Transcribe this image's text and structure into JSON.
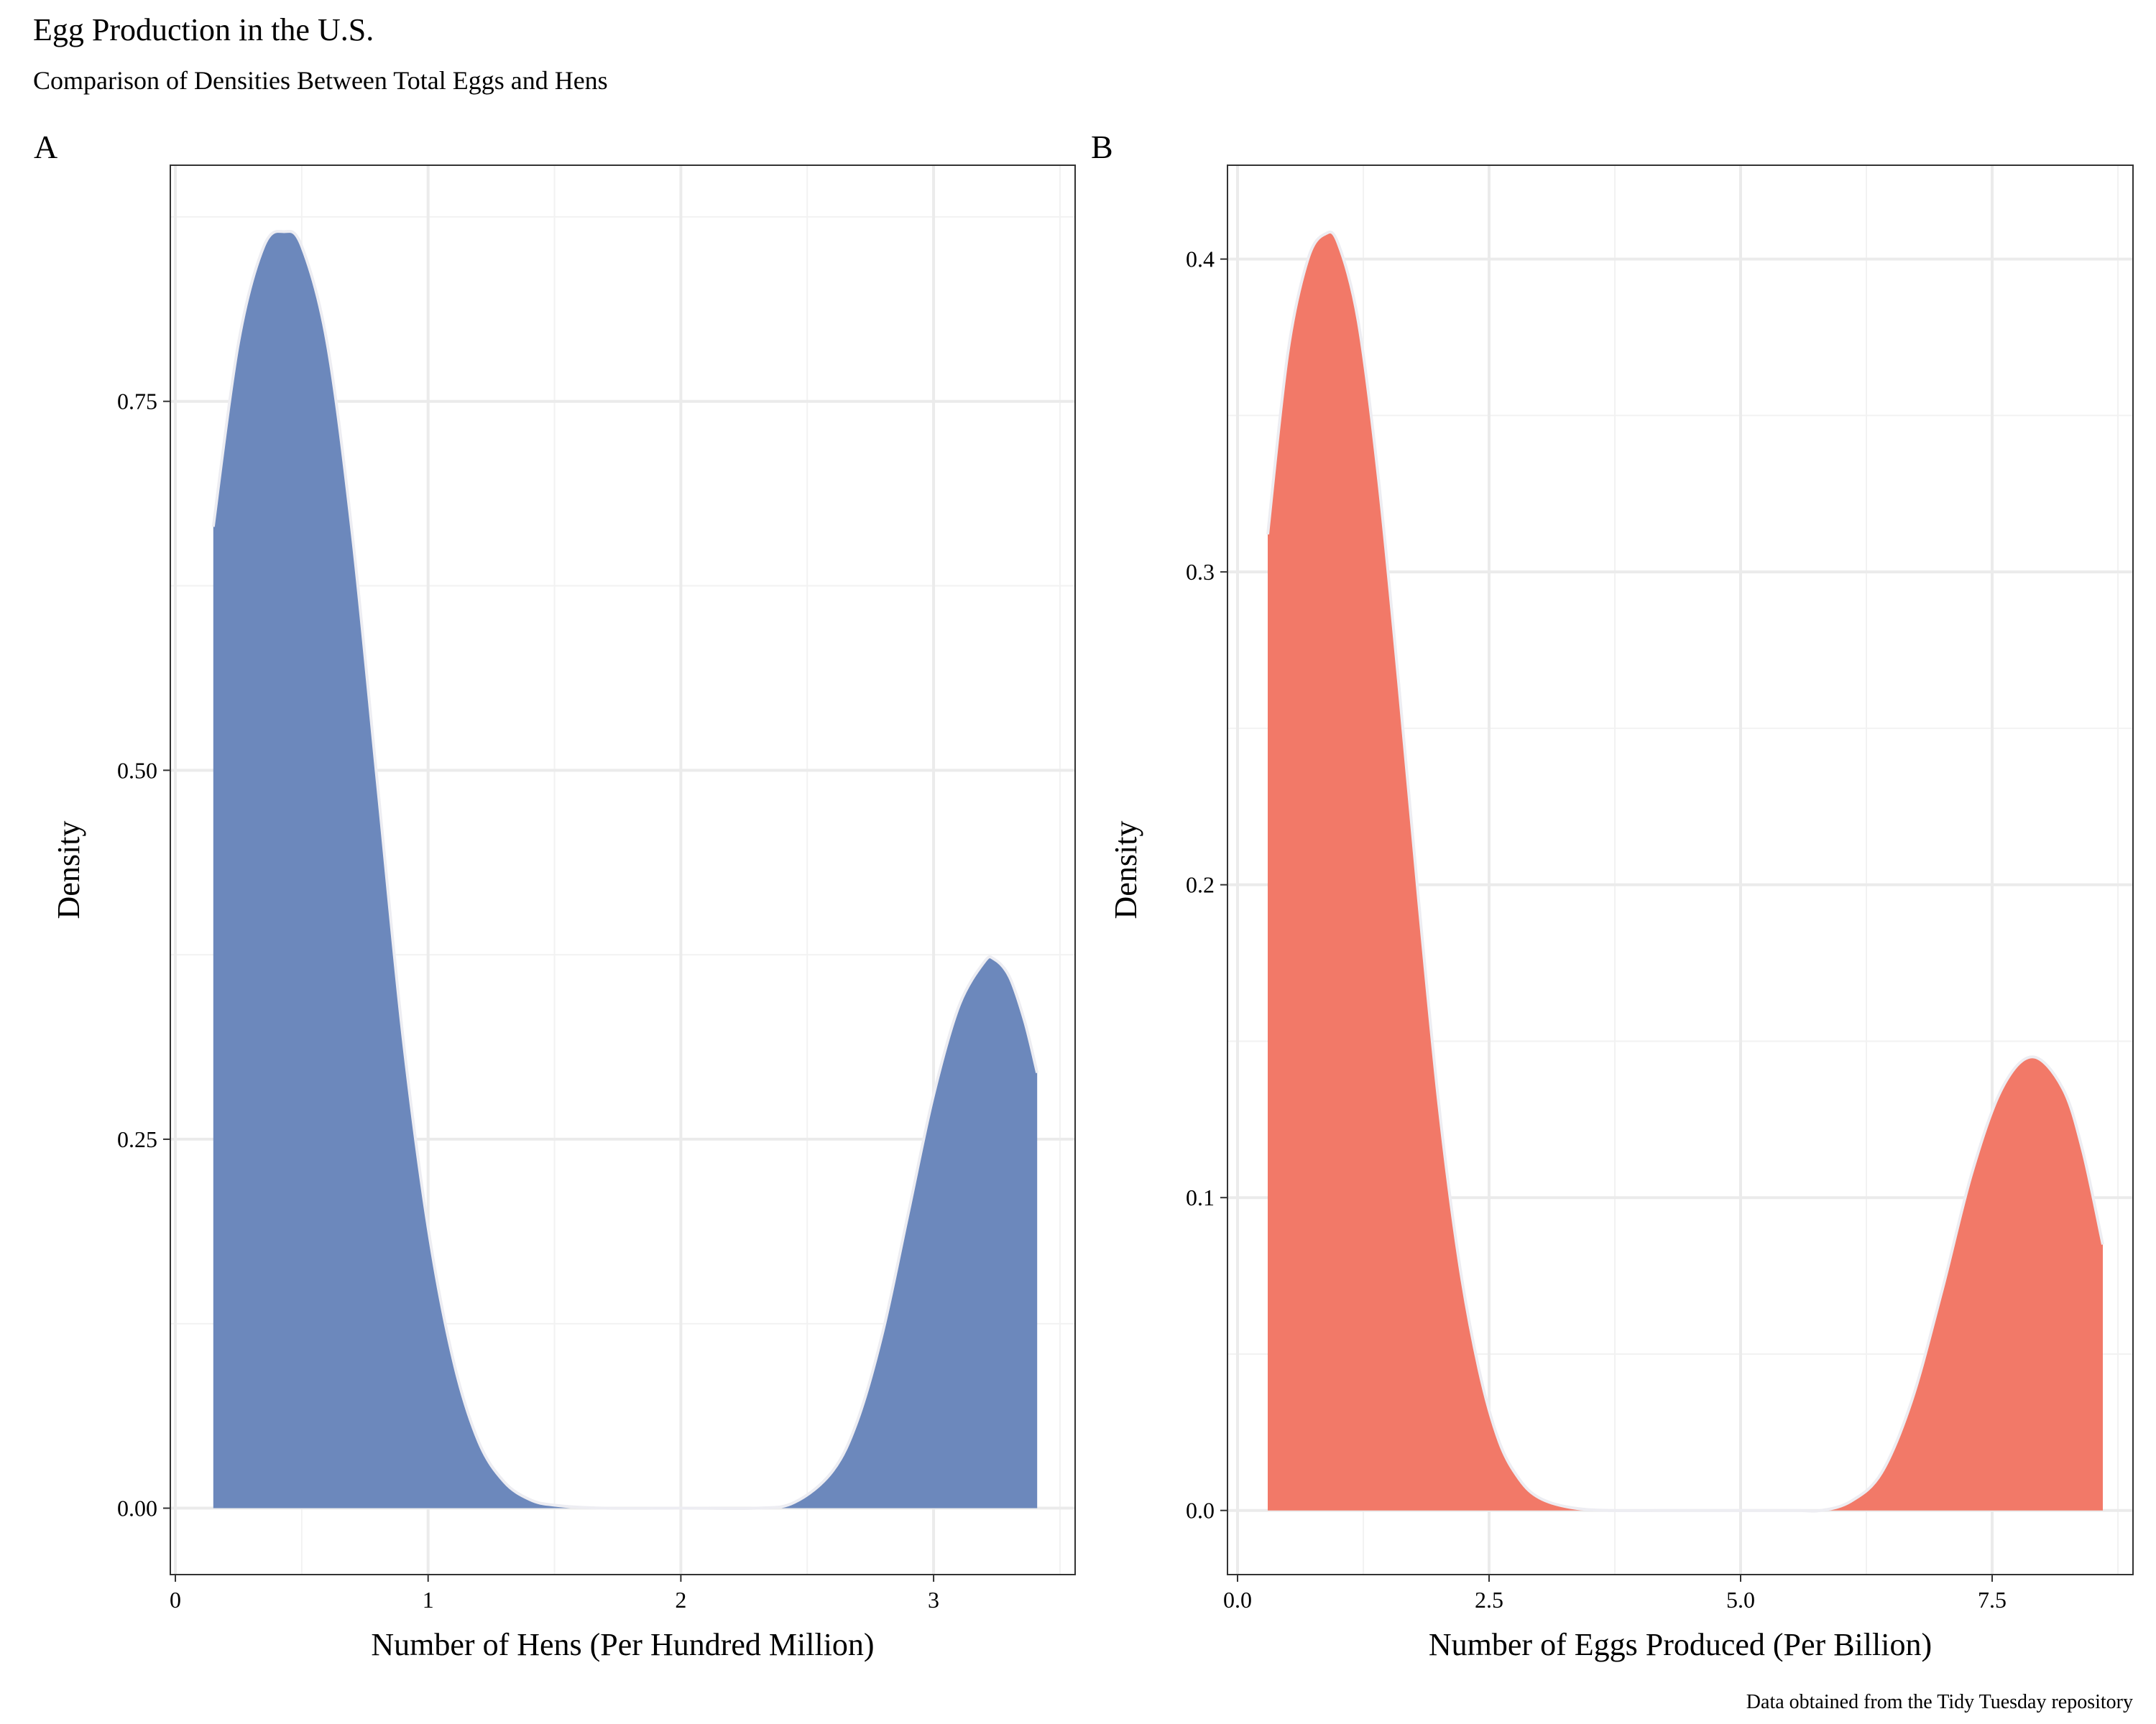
{
  "title": "Egg Production in the U.S.",
  "subtitle": "Comparison of Densities Between Total Eggs and Hens",
  "caption": "Data obtained from the Tidy Tuesday repository",
  "chart_data": [
    {
      "type": "area",
      "tag": "A",
      "xlabel": "Number of Hens (Per Hundred Million)",
      "ylabel": "Density",
      "xlim": [
        -0.02,
        3.56
      ],
      "ylim": [
        -0.045,
        0.91
      ],
      "xticks": [
        0,
        1,
        2,
        3
      ],
      "xtick_labels": [
        "0",
        "1",
        "2",
        "3"
      ],
      "yticks": [
        0,
        0.25,
        0.5,
        0.75
      ],
      "ytick_labels": [
        "0.00",
        "0.25",
        "0.50",
        "0.75"
      ],
      "fill": "#6683B9",
      "grid": true,
      "x": [
        0.15,
        0.25,
        0.35,
        0.43,
        0.5,
        0.6,
        0.7,
        0.8,
        0.9,
        1.0,
        1.1,
        1.2,
        1.3,
        1.4,
        1.5,
        1.7,
        2.0,
        2.3,
        2.45,
        2.6,
        2.7,
        2.8,
        2.9,
        3.0,
        3.1,
        3.2,
        3.24,
        3.3,
        3.36,
        3.41
      ],
      "y": [
        0.665,
        0.79,
        0.855,
        0.865,
        0.855,
        0.79,
        0.66,
        0.49,
        0.32,
        0.19,
        0.1,
        0.045,
        0.018,
        0.006,
        0.002,
        0.0,
        0.0,
        0.0,
        0.004,
        0.025,
        0.06,
        0.12,
        0.2,
        0.28,
        0.34,
        0.37,
        0.372,
        0.36,
        0.33,
        0.295
      ]
    },
    {
      "type": "area",
      "tag": "B",
      "xlabel": "Number of Eggs Produced (Per Billion)",
      "ylabel": "Density",
      "xlim": [
        -0.1,
        8.9
      ],
      "ylim": [
        -0.0205,
        0.43
      ],
      "xticks": [
        0,
        2.5,
        5.0,
        7.5
      ],
      "xtick_labels": [
        "0.0",
        "2.5",
        "5.0",
        "7.5"
      ],
      "yticks": [
        0,
        0.1,
        0.2,
        0.3,
        0.4
      ],
      "ytick_labels": [
        "0.0",
        "0.1",
        "0.2",
        "0.3",
        "0.4"
      ],
      "fill": "#F17462",
      "grid": true,
      "x": [
        0.3,
        0.5,
        0.7,
        0.87,
        1.0,
        1.2,
        1.4,
        1.6,
        1.8,
        2.0,
        2.2,
        2.4,
        2.6,
        2.8,
        3.0,
        3.3,
        3.7,
        4.5,
        5.5,
        5.8,
        6.1,
        6.4,
        6.7,
        7.0,
        7.3,
        7.6,
        7.9,
        8.2,
        8.4,
        8.6
      ],
      "y": [
        0.312,
        0.37,
        0.4,
        0.408,
        0.405,
        0.38,
        0.33,
        0.265,
        0.195,
        0.13,
        0.08,
        0.045,
        0.022,
        0.01,
        0.004,
        0.001,
        0.0,
        0.0,
        0.0,
        0.0,
        0.003,
        0.012,
        0.035,
        0.07,
        0.108,
        0.135,
        0.145,
        0.135,
        0.115,
        0.085
      ]
    }
  ]
}
